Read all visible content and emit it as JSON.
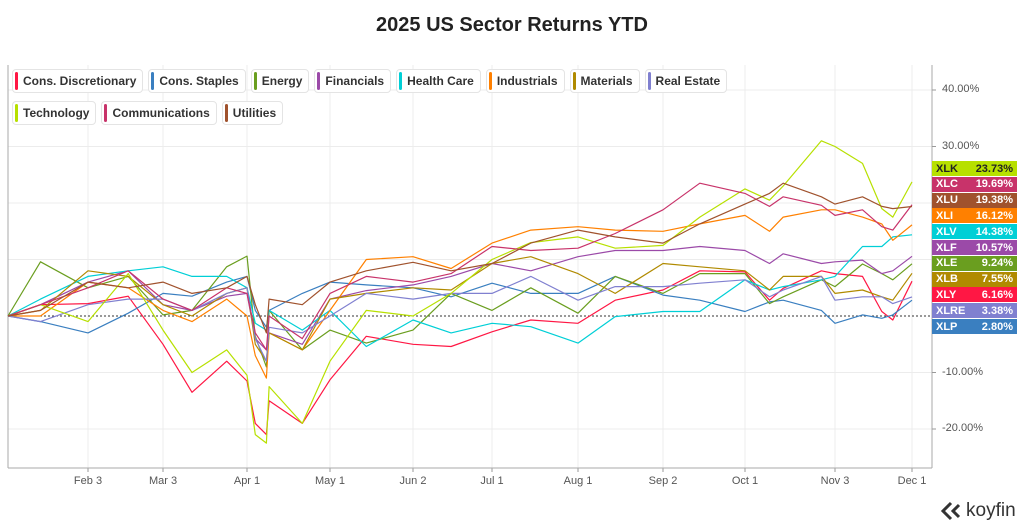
{
  "chart_data": {
    "type": "line",
    "title": "2025 US Sector Returns YTD",
    "y_unit": "%",
    "ylim": [
      -26,
      45
    ],
    "y_ticks": [
      "40.00%",
      "30.00%",
      "-10.00%",
      "-20.00%"
    ],
    "y_tick_values": [
      40,
      30,
      -10,
      -20
    ],
    "y_grid_values": [
      40,
      30,
      20,
      10,
      0,
      -10,
      -20
    ],
    "x_ticks": [
      "Feb 3",
      "Mar 3",
      "Apr 1",
      "May 1",
      "Jun 2",
      "Jul 1",
      "Aug 1",
      "Sep 2",
      "Oct 1",
      "Nov 3",
      "Dec 1"
    ],
    "x_tick_dates": [
      "2025-02-03",
      "2025-03-03",
      "2025-04-01",
      "2025-05-01",
      "2025-06-02",
      "2025-07-01",
      "2025-08-01",
      "2025-09-02",
      "2025-10-01",
      "2025-11-03",
      "2025-12-01"
    ],
    "grid": true,
    "zero_line": "dashed",
    "legend_placement": "top-left",
    "x": [
      "2025-01-02",
      "2025-01-15",
      "2025-02-03",
      "2025-02-18",
      "2025-03-03",
      "2025-03-13",
      "2025-03-25",
      "2025-04-01",
      "2025-04-04",
      "2025-04-08",
      "2025-04-09",
      "2025-04-21",
      "2025-05-01",
      "2025-05-15",
      "2025-06-02",
      "2025-06-16",
      "2025-07-01",
      "2025-07-15",
      "2025-08-01",
      "2025-08-15",
      "2025-09-02",
      "2025-09-15",
      "2025-10-01",
      "2025-10-10",
      "2025-10-15",
      "2025-10-29",
      "2025-11-03",
      "2025-11-13",
      "2025-11-20",
      "2025-11-24",
      "2025-12-01"
    ],
    "series": [
      {
        "name": "Cons. Discretionary",
        "ticker": "XLY",
        "last": "6.16%",
        "color": "#ff1744",
        "values": [
          0,
          2,
          2.2,
          3.5,
          -5,
          -13.5,
          -8,
          -11.5,
          -19,
          -21,
          -15,
          -19,
          -11.3,
          -3.6,
          -5,
          -5.4,
          -2.8,
          -0.7,
          -1.3,
          2.8,
          4.6,
          8,
          7.8,
          2.8,
          4.9,
          8,
          7.5,
          7,
          0.8,
          -0.7,
          6.16
        ]
      },
      {
        "name": "Cons. Staples",
        "ticker": "XLP",
        "last": "2.80%",
        "color": "#3a7fc0",
        "values": [
          0,
          -1,
          -3,
          0.5,
          4,
          3.5,
          6,
          7,
          1,
          -2,
          1,
          4,
          6,
          5.5,
          5,
          3.4,
          5.8,
          4,
          4,
          7,
          3.7,
          2.8,
          0.8,
          2.5,
          2.8,
          1,
          -1.3,
          0.2,
          -0.4,
          0.2,
          2.8
        ]
      },
      {
        "name": "Energy",
        "ticker": "XLE",
        "last": "9.24%",
        "color": "#6a9e1f",
        "values": [
          0,
          9.6,
          5,
          7,
          0.2,
          1,
          8.7,
          10.6,
          -3.6,
          -9,
          1,
          -6,
          -2.5,
          -4.8,
          -2.5,
          4,
          1,
          5,
          0.5,
          7,
          4,
          7.5,
          7.5,
          2.2,
          3.4,
          6.4,
          5.2,
          9.2,
          7.5,
          6.4,
          9.24
        ]
      },
      {
        "name": "Financials",
        "ticker": "XLF",
        "last": "10.57%",
        "color": "#9b4aa8",
        "values": [
          0,
          2,
          6,
          8,
          2,
          1,
          3.5,
          4,
          -4,
          -6,
          -3,
          -5,
          3,
          4.5,
          5.5,
          7,
          9.3,
          8,
          10.5,
          11.6,
          11.6,
          12.3,
          11.6,
          9.3,
          11,
          9.3,
          9.6,
          9.9,
          7.5,
          8,
          10.57
        ]
      },
      {
        "name": "Health Care",
        "ticker": "XLV",
        "last": "14.38%",
        "color": "#00cfd6",
        "values": [
          0,
          3,
          7,
          8,
          8.7,
          7,
          7,
          5,
          -1.3,
          -2.5,
          1,
          -2.5,
          1,
          -5.4,
          -0.7,
          -3,
          -1.3,
          -1.9,
          -4.8,
          -0.1,
          0.8,
          0.8,
          6.4,
          4.6,
          5.2,
          6.4,
          7,
          12.3,
          12.3,
          14,
          14.38
        ]
      },
      {
        "name": "Industrials",
        "ticker": "XLI",
        "last": "16.12%",
        "color": "#ff8000",
        "values": [
          0,
          0,
          6,
          5,
          1,
          -1,
          3,
          0,
          -7,
          -11,
          -3,
          -6,
          1,
          10,
          10.5,
          8.4,
          12.9,
          15.2,
          15.8,
          15.2,
          15,
          16.3,
          17.8,
          15,
          17.5,
          18.8,
          18.8,
          17.5,
          16.3,
          13.4,
          16.12
        ]
      },
      {
        "name": "Materials",
        "ticker": "XLB",
        "last": "7.55%",
        "color": "#b08a00",
        "values": [
          0,
          1,
          8,
          7,
          2,
          0,
          4,
          5,
          -5,
          -8,
          -3,
          -6,
          3,
          4,
          5,
          4.6,
          9.3,
          10.5,
          7.5,
          4,
          9.3,
          8.7,
          8,
          4.6,
          7,
          7,
          4,
          4.6,
          3.4,
          2.8,
          7.55
        ]
      },
      {
        "name": "Real Estate",
        "ticker": "XLRE",
        "last": "3.38%",
        "color": "#8080d0",
        "values": [
          0,
          -1,
          2,
          3,
          3,
          1,
          4,
          5,
          -4,
          -8,
          -2,
          -3,
          0,
          4,
          3,
          4,
          4,
          7,
          2.8,
          5.2,
          5.2,
          5.8,
          6.4,
          3.4,
          4.6,
          7,
          2.8,
          3.4,
          3.4,
          2.2,
          3.38
        ]
      },
      {
        "name": "Technology",
        "ticker": "XLK",
        "last": "23.73%",
        "color": "#b7e000",
        "values": [
          0,
          2,
          -1,
          7.5,
          -2.5,
          -10,
          -6,
          -10.5,
          -21,
          -22.5,
          -12.5,
          -19,
          -8,
          1,
          0,
          4,
          10,
          13,
          14,
          12,
          12.5,
          17.5,
          22.5,
          20.5,
          23,
          31,
          30,
          27,
          19,
          17.5,
          23.73
        ]
      },
      {
        "name": "Communications",
        "ticker": "XLC",
        "last": "19.69%",
        "color": "#c8336a",
        "values": [
          0,
          2,
          5,
          8,
          3,
          1,
          5,
          4,
          -3,
          -6,
          0,
          -4,
          4,
          7,
          6,
          7.5,
          12.3,
          11.6,
          12,
          14.6,
          18.8,
          23.5,
          21.7,
          19.4,
          21.1,
          19.6,
          17.8,
          18.8,
          15.8,
          15.2,
          19.69
        ]
      },
      {
        "name": "Utilities",
        "ticker": "XLU",
        "last": "19.38%",
        "color": "#a0522d",
        "values": [
          0,
          1,
          6,
          5,
          6,
          4,
          5,
          7,
          2,
          -3,
          3,
          2,
          6,
          8,
          9.5,
          8,
          9.3,
          12.9,
          15.2,
          14,
          12.9,
          16.3,
          19.8,
          21.7,
          23.5,
          21.1,
          19.8,
          21.1,
          19.4,
          19,
          19.38
        ]
      }
    ],
    "end_label_order": [
      "XLK",
      "XLC",
      "XLU",
      "XLI",
      "XLV",
      "XLF",
      "XLE",
      "XLB",
      "XLY",
      "XLRE",
      "XLP"
    ],
    "end_label_text_dark": [
      "XLK"
    ]
  },
  "branding": {
    "logo_text": "koyfin",
    "logo_icon": "koyfin-chevrons-icon"
  }
}
